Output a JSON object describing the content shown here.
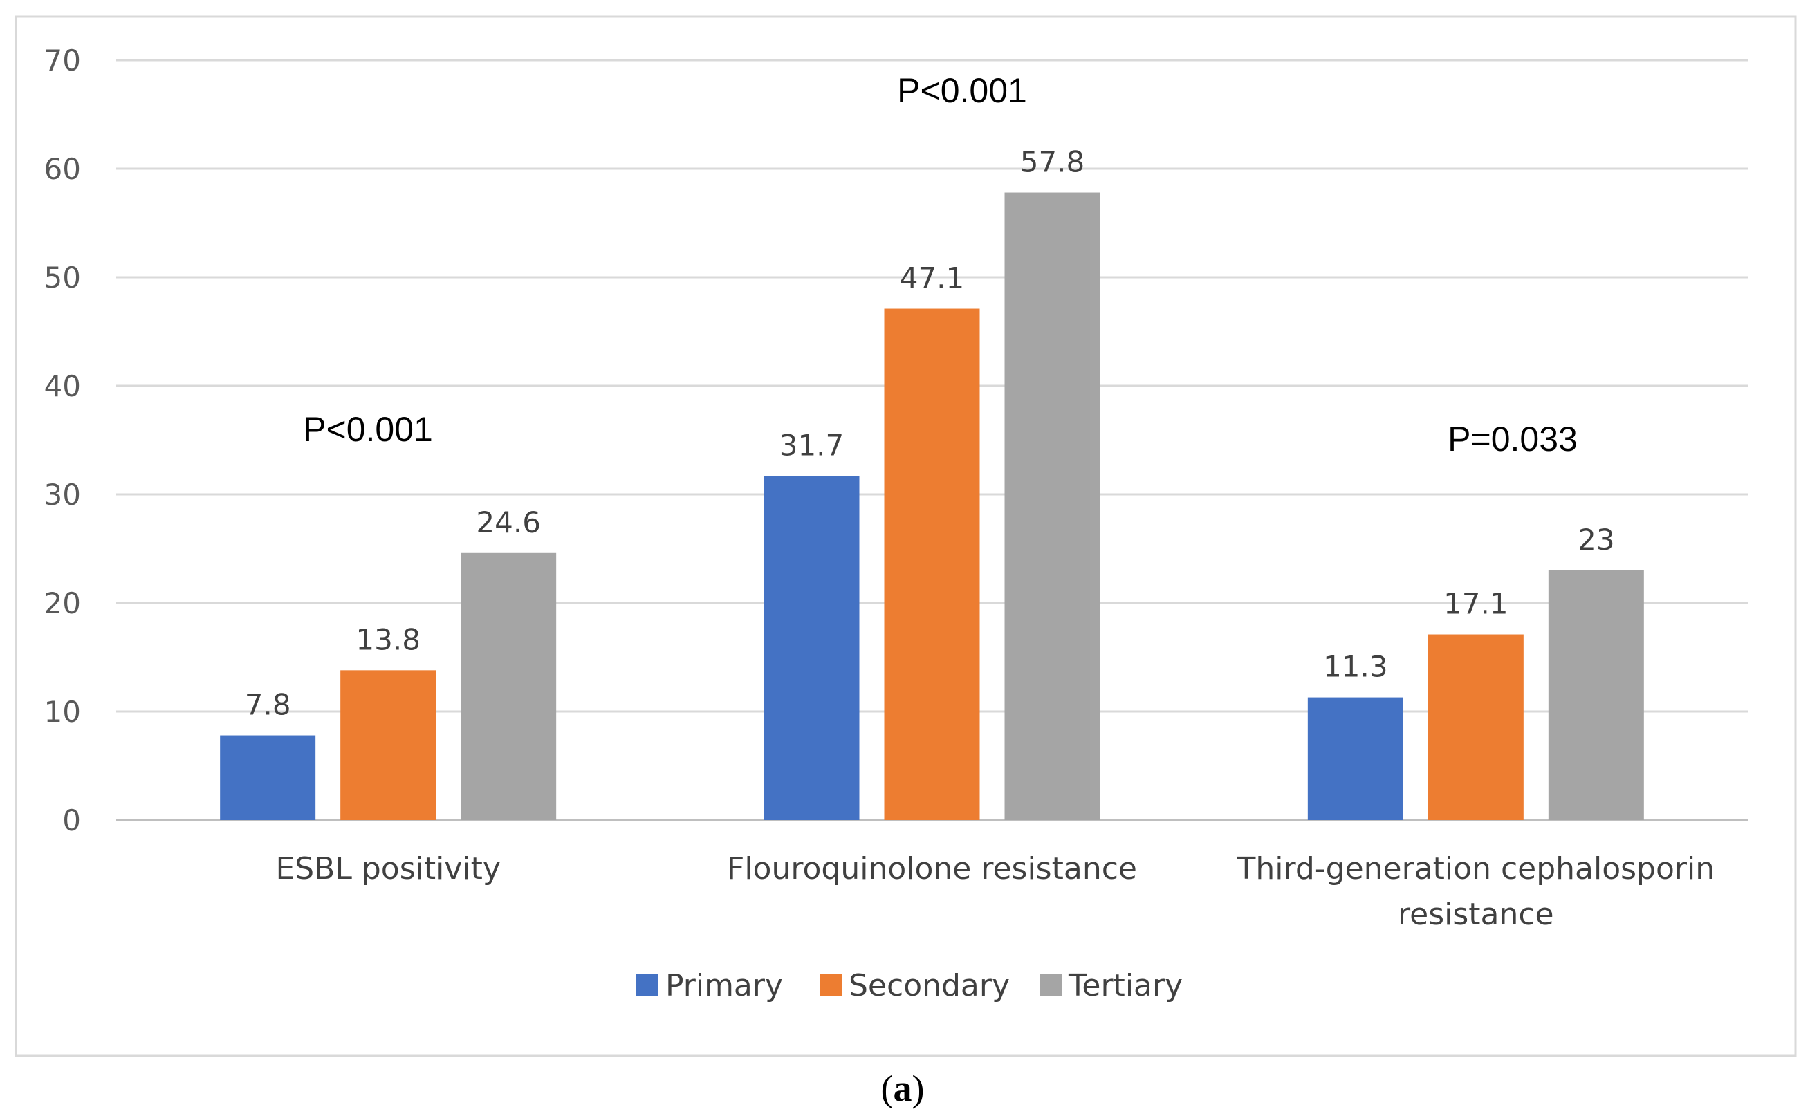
{
  "chart_data": {
    "type": "bar",
    "title": "",
    "xlabel": "",
    "ylabel": "",
    "ylim": [
      0,
      70
    ],
    "yticks": [
      0,
      10,
      20,
      30,
      40,
      50,
      60,
      70
    ],
    "grid": true,
    "legend_position": "bottom-center",
    "categories": [
      [
        "ESBL positivity"
      ],
      [
        "Flouroquinolone resistance"
      ],
      [
        "Third-generation cephalosporin",
        "resistance"
      ]
    ],
    "series": [
      {
        "name": "Primary",
        "color": "#4472C4",
        "values": [
          7.8,
          31.7,
          11.3
        ]
      },
      {
        "name": "Secondary",
        "color": "#ED7D31",
        "values": [
          13.8,
          47.1,
          17.1
        ]
      },
      {
        "name": "Tertiary",
        "color": "#A5A5A5",
        "values": [
          24.6,
          57.8,
          23
        ]
      }
    ],
    "annotations": [
      {
        "text": "P<0.001",
        "category_index": 0
      },
      {
        "text": "P<0.001",
        "category_index": 1
      },
      {
        "text": "P=0.033",
        "category_index": 2
      }
    ]
  },
  "caption": {
    "open": "(",
    "letter": "a",
    "close": ")"
  },
  "colors": {
    "gridline": "#D9D9D9",
    "axis": "#BFBFBF",
    "frame": "#D9D9D9"
  }
}
